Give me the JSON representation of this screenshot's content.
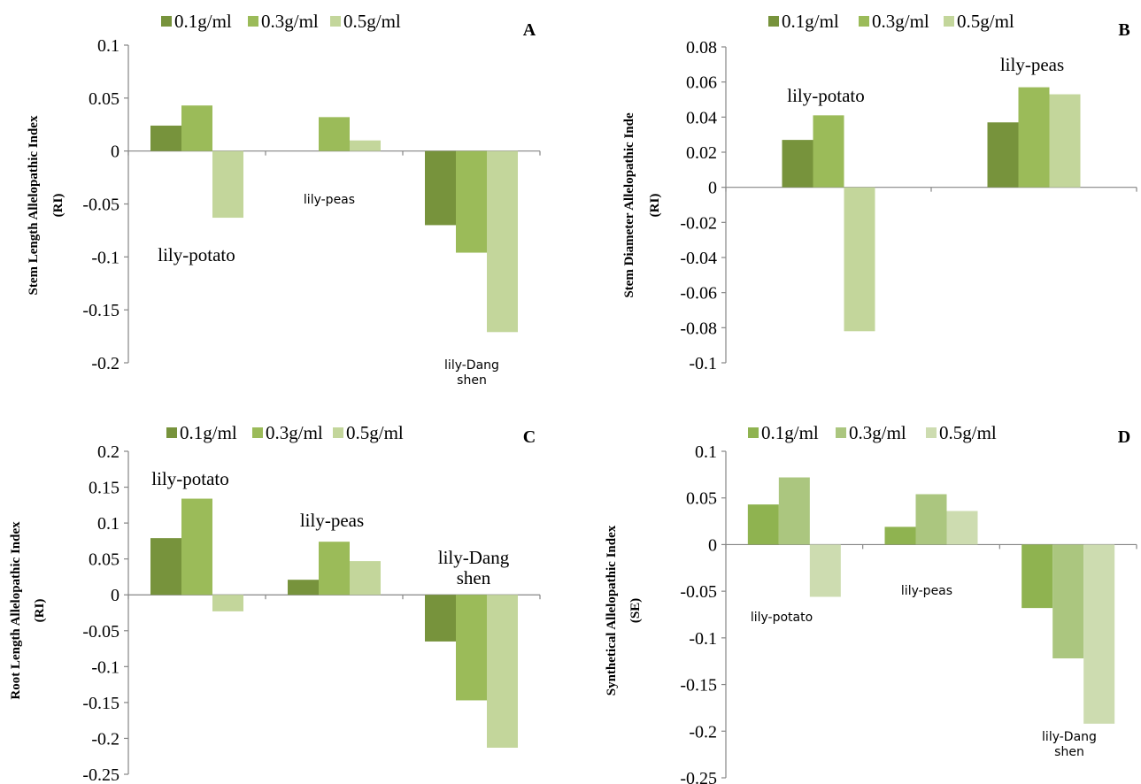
{
  "chart_data": [
    {
      "type": "bar",
      "panel_letter": "A",
      "ylabel_lines": [
        "Stem Length Allelopathic Index",
        "(RI)"
      ],
      "legend": [
        "0.1g/ml",
        "0.3g/ml",
        "0.5g/ml"
      ],
      "colors": [
        "#77933c",
        "#9bbb59",
        "#c3d69b"
      ],
      "categories": [
        "lily-potato",
        "lily-peas",
        "lily-Dang shen"
      ],
      "category_label_lines": [
        [
          "lily-potato"
        ],
        [
          "lily-peas"
        ],
        [
          "lily-Dang",
          "shen"
        ]
      ],
      "yticks": [
        "0.1",
        "0.05",
        "0",
        "-0.05",
        "-0.1",
        "-0.15",
        "-0.2"
      ],
      "ylim": [
        -0.2,
        0.1
      ],
      "series": [
        {
          "name": "0.1g/ml",
          "values": [
            0.024,
            0,
            -0.07
          ]
        },
        {
          "name": "0.3g/ml",
          "values": [
            0.043,
            0.032,
            -0.096
          ]
        },
        {
          "name": "0.5g/ml",
          "values": [
            -0.063,
            0.01,
            -0.171
          ]
        }
      ]
    },
    {
      "type": "bar",
      "panel_letter": "B",
      "ylabel_lines": [
        "Stem Diameter Allelopathic Inde",
        "(RI)"
      ],
      "legend": [
        "0.1g/ml",
        "0.3g/ml",
        "0.5g/ml"
      ],
      "colors": [
        "#77933c",
        "#9bbb59",
        "#c3d69b"
      ],
      "categories": [
        "lily-potato",
        "lily-peas"
      ],
      "category_label_lines": [
        [
          "lily-potato"
        ],
        [
          "lily-peas"
        ]
      ],
      "yticks": [
        "0.08",
        "0.06",
        "0.04",
        "0.02",
        "0",
        "-0.02",
        "-0.04",
        "-0.06",
        "-0.08",
        "-0.1"
      ],
      "ylim": [
        -0.1,
        0.08
      ],
      "series": [
        {
          "name": "0.1g/ml",
          "values": [
            0.027,
            0.037
          ]
        },
        {
          "name": "0.3g/ml",
          "values": [
            0.041,
            0.057
          ]
        },
        {
          "name": "0.5g/ml",
          "values": [
            -0.082,
            0.053
          ]
        }
      ]
    },
    {
      "type": "bar",
      "panel_letter": "C",
      "ylabel_lines": [
        "Root Length Allelopathic Index",
        "(RI)"
      ],
      "legend": [
        "0.1g/ml",
        "0.3g/ml",
        "0.5g/ml"
      ],
      "colors": [
        "#77933c",
        "#9bbb59",
        "#c3d69b"
      ],
      "categories": [
        "lily-potato",
        "lily-peas",
        "lily-Dang shen"
      ],
      "category_label_lines": [
        [
          "lily-potato"
        ],
        [
          "lily-peas"
        ],
        [
          "lily-Dang",
          "shen"
        ]
      ],
      "yticks": [
        "0.2",
        "0.15",
        "0.1",
        "0.05",
        "0",
        "-0.05",
        "-0.1",
        "-0.15",
        "-0.2",
        "-0.25"
      ],
      "ylim": [
        -0.25,
        0.2
      ],
      "series": [
        {
          "name": "0.1g/ml",
          "values": [
            0.079,
            0.021,
            -0.065
          ]
        },
        {
          "name": "0.3g/ml",
          "values": [
            0.134,
            0.074,
            -0.147
          ]
        },
        {
          "name": "0.5g/ml",
          "values": [
            -0.023,
            0.047,
            -0.213
          ]
        }
      ]
    },
    {
      "type": "bar",
      "panel_letter": "D",
      "ylabel_lines": [
        "Synthetical Allelopathic Index",
        "(SE)"
      ],
      "legend": [
        "0.1g/ml",
        "0.3g/ml",
        "0.5g/ml"
      ],
      "colors": [
        "#8fb350",
        "#abc67f",
        "#cddcb0"
      ],
      "categories": [
        "lily-potato",
        "lily-peas",
        "lily-Dang shen"
      ],
      "category_label_lines": [
        [
          "lily-potato"
        ],
        [
          "lily-peas"
        ],
        [
          "lily-Dang",
          "shen"
        ]
      ],
      "yticks": [
        "0.1",
        "0.05",
        "0",
        "-0.05",
        "-0.1",
        "-0.15",
        "-0.2",
        "-0.25"
      ],
      "ylim": [
        -0.25,
        0.1
      ],
      "series": [
        {
          "name": "0.1g/ml",
          "values": [
            0.043,
            0.019,
            -0.068
          ]
        },
        {
          "name": "0.3g/ml",
          "values": [
            0.072,
            0.054,
            -0.122
          ]
        },
        {
          "name": "0.5g/ml",
          "values": [
            -0.056,
            0.036,
            -0.192
          ]
        }
      ]
    }
  ]
}
